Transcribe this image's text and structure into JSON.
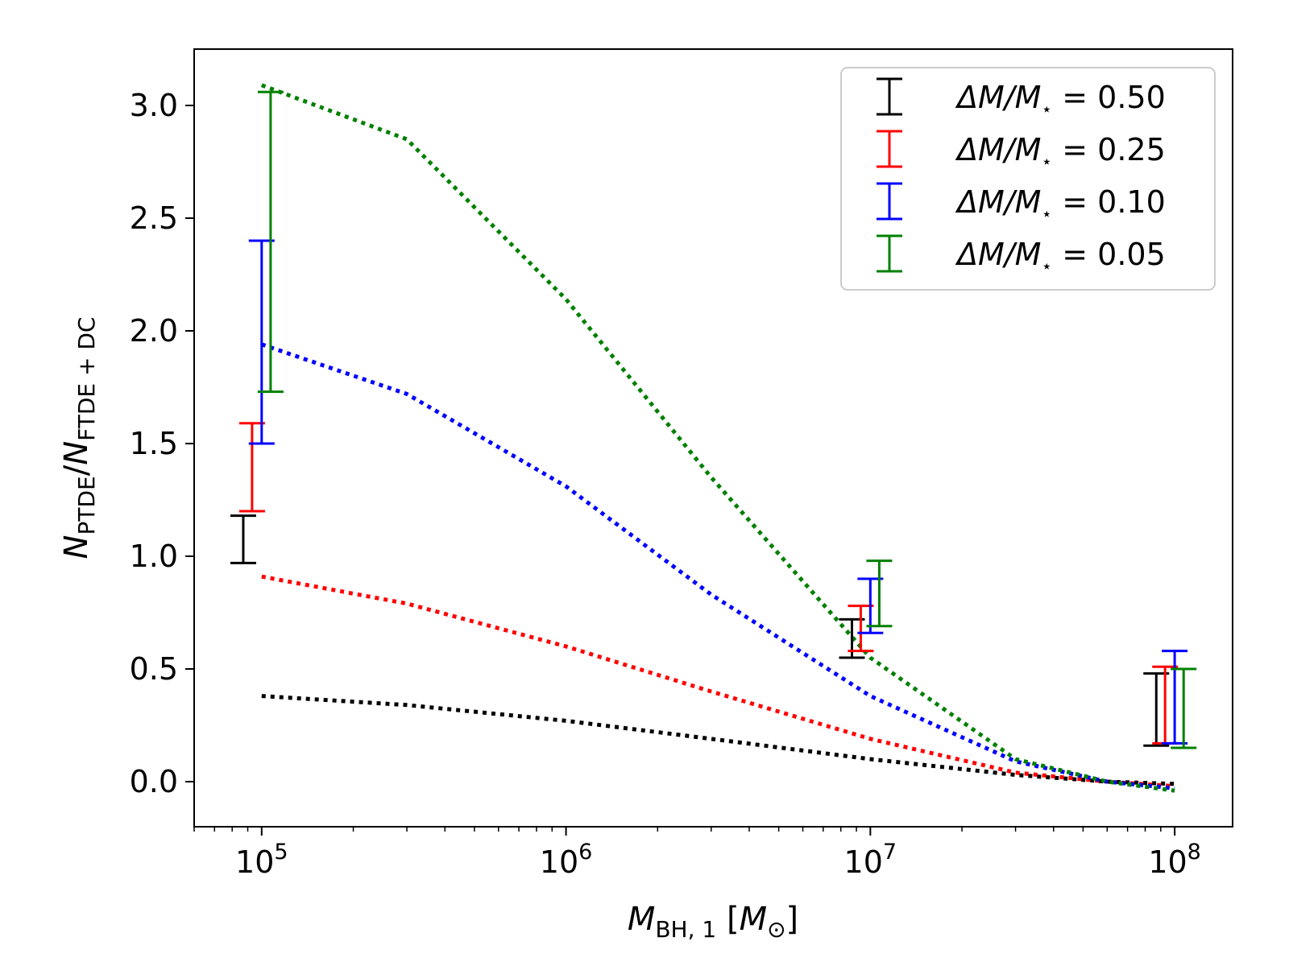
{
  "chart_data": {
    "type": "line",
    "title": "",
    "xlabel": {
      "main": "M",
      "sub": "BH, 1",
      "unit_open": " [",
      "unit_main": "M",
      "unit_sub": "⊙",
      "unit_close": "]"
    },
    "ylabel": {
      "num_main": "N",
      "num_sub": "PTDE",
      "sep": "/",
      "den_main": "N",
      "den_sub": "FTDE + DC"
    },
    "x_scale": "log",
    "xlim": [
      60000,
      155000000
    ],
    "ylim": [
      -0.2,
      3.25
    ],
    "x_ticks": [
      {
        "value": 100000,
        "base": "10",
        "exp": "5"
      },
      {
        "value": 1000000,
        "base": "10",
        "exp": "6"
      },
      {
        "value": 10000000,
        "base": "10",
        "exp": "7"
      },
      {
        "value": 100000000,
        "base": "10",
        "exp": "8"
      }
    ],
    "y_ticks": [
      {
        "value": 0.0,
        "label": "0.0"
      },
      {
        "value": 0.5,
        "label": "0.5"
      },
      {
        "value": 1.0,
        "label": "1.0"
      },
      {
        "value": 1.5,
        "label": "1.5"
      },
      {
        "value": 2.0,
        "label": "2.0"
      },
      {
        "value": 2.5,
        "label": "2.5"
      },
      {
        "value": 3.0,
        "label": "3.0"
      }
    ],
    "legend_position": "top-right",
    "series": [
      {
        "name": "ΔM/M⋆ = 0.50",
        "legend": {
          "main": "ΔM/M",
          "sub": "⋆",
          "rest": " = 0.50"
        },
        "color": "#000000",
        "line_x": [
          100000,
          300000,
          1000000,
          3000000,
          10000000,
          30000000,
          60000000,
          100000000
        ],
        "line_y": [
          0.38,
          0.34,
          0.27,
          0.19,
          0.1,
          0.03,
          0.0,
          -0.01
        ],
        "errorbars": [
          {
            "x": 87000,
            "low": 0.97,
            "high": 1.18
          },
          {
            "x": 8700000,
            "low": 0.55,
            "high": 0.72
          },
          {
            "x": 87000000,
            "low": 0.16,
            "high": 0.48
          }
        ]
      },
      {
        "name": "ΔM/M⋆ = 0.25",
        "legend": {
          "main": "ΔM/M",
          "sub": "⋆",
          "rest": " = 0.25"
        },
        "color": "#ff0000",
        "line_x": [
          100000,
          300000,
          1000000,
          3000000,
          10000000,
          30000000,
          60000000,
          100000000
        ],
        "line_y": [
          0.91,
          0.79,
          0.6,
          0.4,
          0.19,
          0.04,
          0.0,
          -0.02
        ],
        "errorbars": [
          {
            "x": 93000,
            "low": 1.2,
            "high": 1.59
          },
          {
            "x": 9300000,
            "low": 0.58,
            "high": 0.78
          },
          {
            "x": 93000000,
            "low": 0.17,
            "high": 0.51
          }
        ]
      },
      {
        "name": "ΔM/M⋆ = 0.10",
        "legend": {
          "main": "ΔM/M",
          "sub": "⋆",
          "rest": " = 0.10"
        },
        "color": "#0000ff",
        "line_x": [
          100000,
          300000,
          1000000,
          3000000,
          10000000,
          30000000,
          60000000,
          100000000
        ],
        "line_y": [
          1.94,
          1.72,
          1.31,
          0.83,
          0.38,
          0.09,
          0.0,
          -0.03
        ],
        "errorbars": [
          {
            "x": 100000,
            "low": 1.5,
            "high": 2.4
          },
          {
            "x": 10000000,
            "low": 0.66,
            "high": 0.9
          },
          {
            "x": 100000000,
            "low": 0.17,
            "high": 0.58
          }
        ]
      },
      {
        "name": "ΔM/M⋆ = 0.05",
        "legend": {
          "main": "ΔM/M",
          "sub": "⋆",
          "rest": " = 0.05"
        },
        "color": "#008000",
        "line_x": [
          100000,
          300000,
          1000000,
          3000000,
          10000000,
          30000000,
          60000000,
          100000000
        ],
        "line_y": [
          3.09,
          2.85,
          2.14,
          1.35,
          0.55,
          0.1,
          0.0,
          -0.04
        ],
        "errorbars": [
          {
            "x": 107000,
            "low": 1.73,
            "high": 3.06
          },
          {
            "x": 10700000,
            "low": 0.69,
            "high": 0.98
          },
          {
            "x": 107000000,
            "low": 0.15,
            "high": 0.5
          }
        ]
      }
    ]
  }
}
